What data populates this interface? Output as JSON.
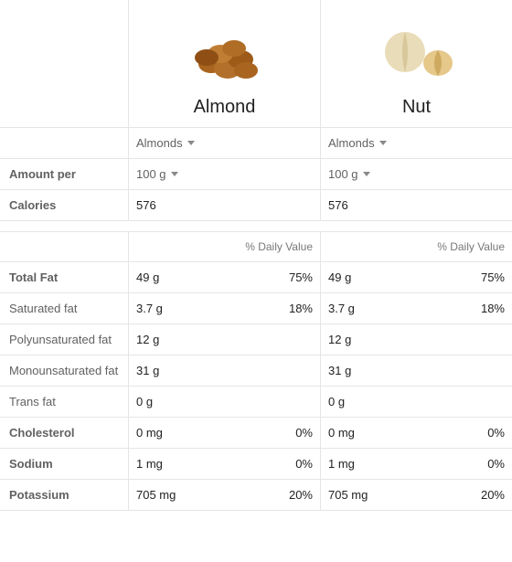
{
  "header": {
    "items": [
      {
        "title": "Almond"
      },
      {
        "title": "Nut"
      }
    ]
  },
  "selectors": {
    "type_label_a": "Almonds",
    "type_label_b": "Almonds"
  },
  "amount_per": {
    "label": "Amount per",
    "value_a": "100 g",
    "value_b": "100 g"
  },
  "calories": {
    "label": "Calories",
    "value_a": "576",
    "value_b": "576"
  },
  "dv_header": "% Daily Value",
  "rows": [
    {
      "label": "Total Fat",
      "bold": true,
      "a_val": "49 g",
      "a_dv": "75%",
      "b_val": "49 g",
      "b_dv": "75%"
    },
    {
      "label": "Saturated fat",
      "bold": false,
      "a_val": "3.7 g",
      "a_dv": "18%",
      "b_val": "3.7 g",
      "b_dv": "18%"
    },
    {
      "label": "Polyunsaturated fat",
      "bold": false,
      "a_val": "12 g",
      "a_dv": "",
      "b_val": "12 g",
      "b_dv": ""
    },
    {
      "label": "Monounsaturated fat",
      "bold": false,
      "a_val": "31 g",
      "a_dv": "",
      "b_val": "31 g",
      "b_dv": ""
    },
    {
      "label": "Trans fat",
      "bold": false,
      "a_val": "0 g",
      "a_dv": "",
      "b_val": "0 g",
      "b_dv": ""
    },
    {
      "label": "Cholesterol",
      "bold": true,
      "a_val": "0 mg",
      "a_dv": "0%",
      "b_val": "0 mg",
      "b_dv": "0%"
    },
    {
      "label": "Sodium",
      "bold": true,
      "a_val": "1 mg",
      "a_dv": "0%",
      "b_val": "1 mg",
      "b_dv": "0%"
    },
    {
      "label": "Potassium",
      "bold": true,
      "a_val": "705 mg",
      "a_dv": "20%",
      "b_val": "705 mg",
      "b_dv": "20%"
    }
  ]
}
